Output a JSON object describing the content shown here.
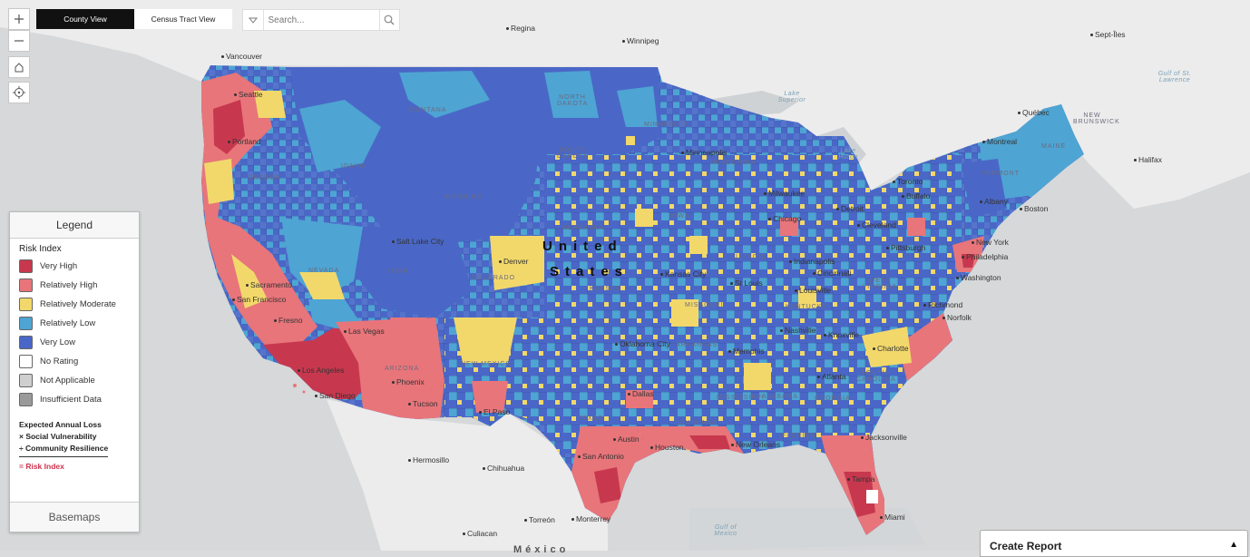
{
  "controls": {
    "zoom_in_icon": "plus-icon",
    "zoom_out_icon": "minus-icon",
    "home_icon": "home-icon",
    "locate_icon": "locate-icon"
  },
  "view_tabs": {
    "county": "County View",
    "tract": "Census Tract View"
  },
  "search": {
    "placeholder": "Search..."
  },
  "legend": {
    "title": "Legend",
    "risk_title": "Risk Index",
    "items": [
      {
        "label": "Very High",
        "color": "#c7384f"
      },
      {
        "label": "Relatively High",
        "color": "#e8757a"
      },
      {
        "label": "Relatively Moderate",
        "color": "#f2d86b"
      },
      {
        "label": "Relatively Low",
        "color": "#4ea4d3"
      },
      {
        "label": "Very Low",
        "color": "#4a67c7"
      },
      {
        "label": "No Rating",
        "color": "#ffffff"
      },
      {
        "label": "Not Applicable",
        "color": "#cfcfcf"
      },
      {
        "label": "Insufficient Data",
        "color": "#9a9a9a"
      }
    ],
    "formula": {
      "line1": "Expected Annual Loss",
      "line2": "× Social Vulnerability",
      "line3": "÷ Community Resilience",
      "result": "= Risk Index"
    },
    "basemaps": "Basemaps"
  },
  "report": {
    "label": "Create Report"
  },
  "map": {
    "country_label_1": "United",
    "country_label_2": "States",
    "cities": [
      "Regina",
      "Winnipeg",
      "Sept-Îles",
      "Vancouver",
      "Seattle",
      "Portland",
      "Québec",
      "Montreal",
      "Halifax",
      "Toronto",
      "Buffalo",
      "Albany",
      "Boston",
      "Minneapolis",
      "Milwaukee",
      "Chicago",
      "Detroit",
      "Cleveland",
      "Pittsburgh",
      "New York",
      "Philadelphia",
      "Washington",
      "Richmond",
      "Norfolk",
      "Salt Lake City",
      "Denver",
      "Kansas City",
      "St Louis",
      "Indianapolis",
      "Cincinnati",
      "Louisville",
      "Nashville",
      "Knoxville",
      "Charlotte",
      "Atlanta",
      "Memphis",
      "Oklahoma City",
      "Dallas",
      "Austin",
      "Houston",
      "San Antonio",
      "New Orleans",
      "Jacksonville",
      "Tampa",
      "Miami",
      "El Paso",
      "Tucson",
      "Phoenix",
      "Las Vegas",
      "Los Angeles",
      "San Diego",
      "Fresno",
      "San Francisco",
      "Sacramento",
      "Hermosillo",
      "Chihuahua",
      "Torreón",
      "Monterrey",
      "Culiacan"
    ],
    "states": [
      "MONTANA",
      "NORTH DAKOTA",
      "MINNESOTA",
      "SOUTH DAKOTA",
      "WISCONSIN",
      "IDAHO",
      "OREGON",
      "WYOMING",
      "NEBRASKA",
      "IOWA",
      "NEVADA",
      "UTAH",
      "COLORADO",
      "KANSAS",
      "MISSOURI",
      "ILLINOIS",
      "KENTUCKY",
      "ARIZONA",
      "NEW MEXICO",
      "ARKANSAS",
      "TEXAS",
      "LOUISIANA",
      "MISSISSIPPI",
      "ALABAMA",
      "GEORGIA",
      "FLORIDA",
      "SOUTH CAROLINA",
      "WEST VIRGINIA",
      "VERMONT",
      "MAINE",
      "NEW BRUNSWICK"
    ],
    "water": [
      "Lake Superior",
      "Lake Huron",
      "Gulf of St. Lawrence",
      "Gulf of Mexico"
    ],
    "partial_label": "México"
  }
}
